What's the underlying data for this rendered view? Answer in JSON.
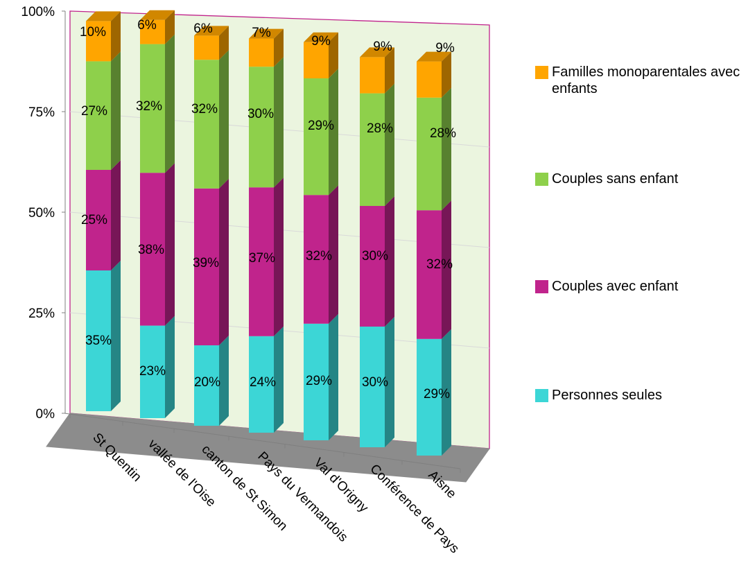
{
  "chart_data": {
    "type": "bar",
    "stacked": true,
    "three_d": true,
    "categories": [
      "St Quentin",
      "vallée de l'Oise",
      "canton de St Simon",
      "Pays du Vermandois",
      "Val d'Origny",
      "Conférence de Pays",
      "Aisne"
    ],
    "series": [
      {
        "name": "Personnes seules",
        "color": "#3cd6d6",
        "values": [
          35,
          23,
          20,
          24,
          29,
          30,
          29
        ],
        "labels": [
          "35%",
          "23%",
          "20%",
          "24%",
          "29%",
          "30%",
          "29%"
        ]
      },
      {
        "name": "Couples avec enfant",
        "color": "#c0248c",
        "values": [
          25,
          38,
          39,
          37,
          32,
          30,
          32
        ],
        "labels": [
          "25%",
          "38%",
          "39%",
          "37%",
          "32%",
          "30%",
          "32%"
        ]
      },
      {
        "name": "Couples sans enfant",
        "color": "#8ed04b",
        "values": [
          27,
          32,
          32,
          30,
          29,
          28,
          28
        ],
        "labels": [
          "27%",
          "32%",
          "32%",
          "30%",
          "29%",
          "28%",
          "28%"
        ]
      },
      {
        "name": "Familles monoparentales avec enfants",
        "color": "#ffa500",
        "values": [
          10,
          6,
          6,
          7,
          9,
          9,
          9
        ],
        "labels": [
          "10%",
          "6%",
          "6%",
          "7%",
          "9%",
          "9%",
          "9%"
        ]
      }
    ],
    "y_ticks": [
      "0%",
      "25%",
      "50%",
      "75%",
      "100%"
    ],
    "ylim": [
      0,
      100
    ],
    "grid": true,
    "legend_position": "right",
    "wall_color": "#ebf5df",
    "floor_color": "#8c8c8c",
    "frame_color": "#c0248c"
  }
}
